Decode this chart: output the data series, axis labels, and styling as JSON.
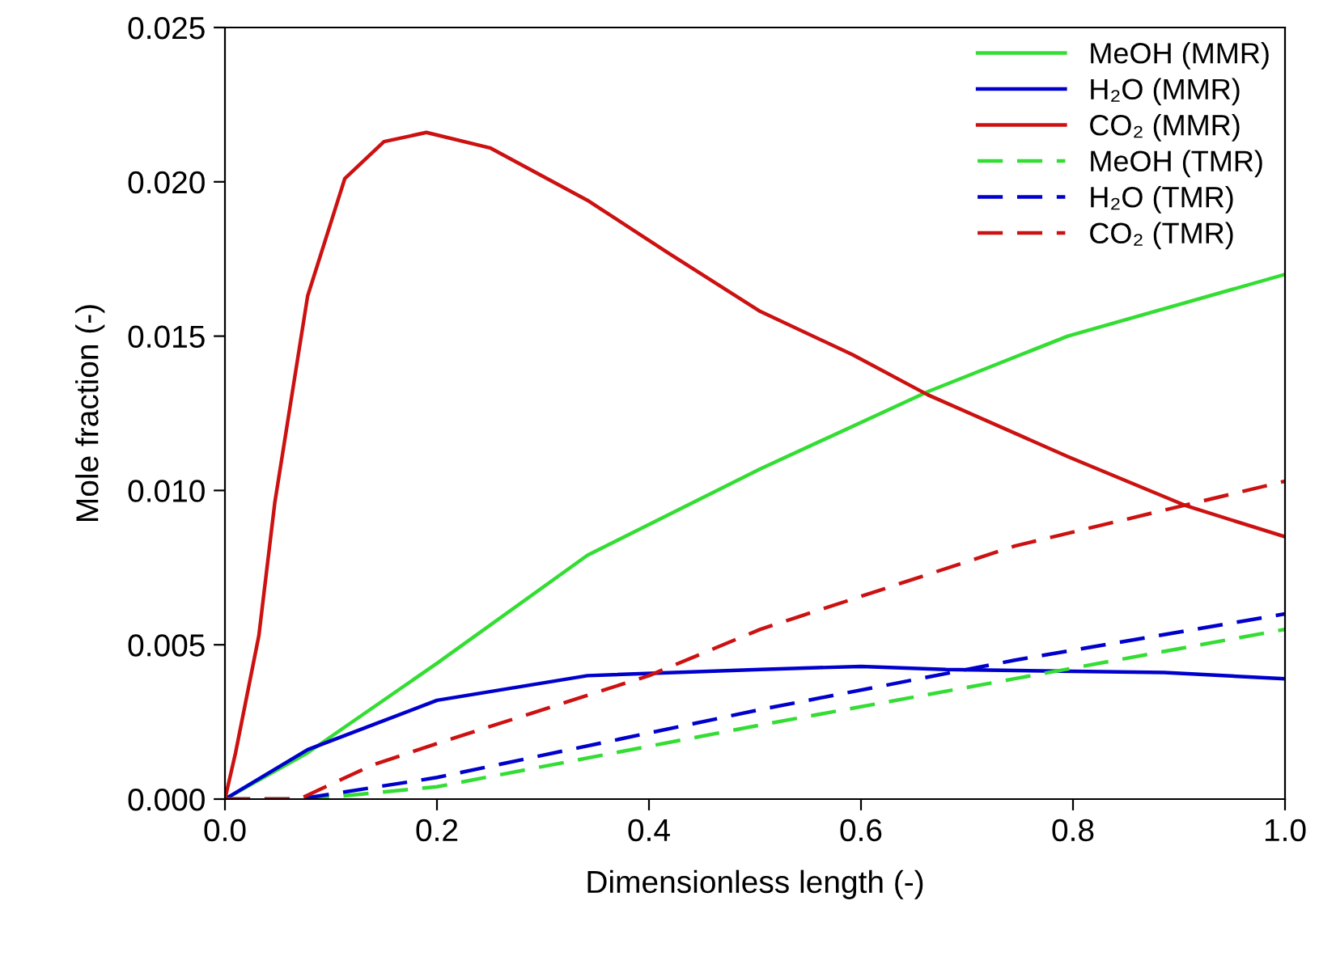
{
  "chart_data": {
    "type": "line",
    "xlabel": "Dimensionless length (-)",
    "ylabel": "Mole fraction (-)",
    "xlim": [
      0,
      1
    ],
    "ylim": [
      0,
      0.025
    ],
    "xticks": [
      {
        "value": 0,
        "label": "0.0"
      },
      0.2,
      0.4,
      0.6,
      0.8,
      {
        "value": 1,
        "label": "1.0"
      }
    ],
    "yticks": [
      {
        "value": 0,
        "label": "0.000"
      },
      0.005,
      {
        "value": 0.01,
        "label": "0.010"
      },
      0.015,
      {
        "value": 0.02,
        "label": "0.020"
      },
      0.025
    ],
    "grid": false,
    "legend": "top right",
    "series": [
      {
        "name": "MeOH (MMR)",
        "color": "#33dd33",
        "line_style": "solid",
        "x": [
          0,
          0.078,
          0.2,
          0.342,
          0.505,
          0.663,
          0.795,
          1.0
        ],
        "values": [
          0,
          0.0015,
          0.0044,
          0.0079,
          0.0107,
          0.0132,
          0.015,
          0.017
        ]
      },
      {
        "name": "H₂O (MMR)",
        "color": "#0000cc",
        "line_style": "solid",
        "x": [
          0,
          0.078,
          0.2,
          0.342,
          0.505,
          0.6,
          0.68,
          0.886,
          1.0
        ],
        "values": [
          0,
          0.0016,
          0.0032,
          0.004,
          0.0042,
          0.0043,
          0.0042,
          0.0041,
          0.0039
        ]
      },
      {
        "name": "CO₂ (MMR)",
        "color": "#cc1111",
        "line_style": "solid",
        "x": [
          0,
          0.01,
          0.032,
          0.047,
          0.078,
          0.113,
          0.15,
          0.19,
          0.25,
          0.342,
          0.418,
          0.505,
          0.592,
          0.663,
          0.795,
          0.907,
          1.0
        ],
        "values": [
          0,
          0.0015,
          0.0053,
          0.0096,
          0.0163,
          0.0201,
          0.0213,
          0.0216,
          0.0211,
          0.0194,
          0.0177,
          0.0158,
          0.0144,
          0.0131,
          0.0111,
          0.0095,
          0.0085
        ]
      },
      {
        "name": "MeOH (TMR)",
        "color": "#33dd33",
        "line_style": "dashed",
        "x": [
          0,
          0.08,
          0.2,
          0.505,
          0.745,
          1.0
        ],
        "values": [
          0,
          0,
          0.0004,
          0.0024,
          0.0039,
          0.0055
        ]
      },
      {
        "name": "H₂O (TMR)",
        "color": "#0000cc",
        "line_style": "dashed",
        "x": [
          0,
          0.07,
          0.2,
          0.505,
          0.745,
          1.0
        ],
        "values": [
          0,
          0,
          0.0007,
          0.0029,
          0.0045,
          0.006
        ]
      },
      {
        "name": "CO₂ (TMR)",
        "color": "#cc1111",
        "line_style": "dashed",
        "x": [
          0,
          0.07,
          0.139,
          0.2,
          0.4,
          0.505,
          0.745,
          1.0
        ],
        "values": [
          0,
          0,
          0.0011,
          0.0018,
          0.004,
          0.0055,
          0.0082,
          0.0103
        ]
      }
    ]
  }
}
